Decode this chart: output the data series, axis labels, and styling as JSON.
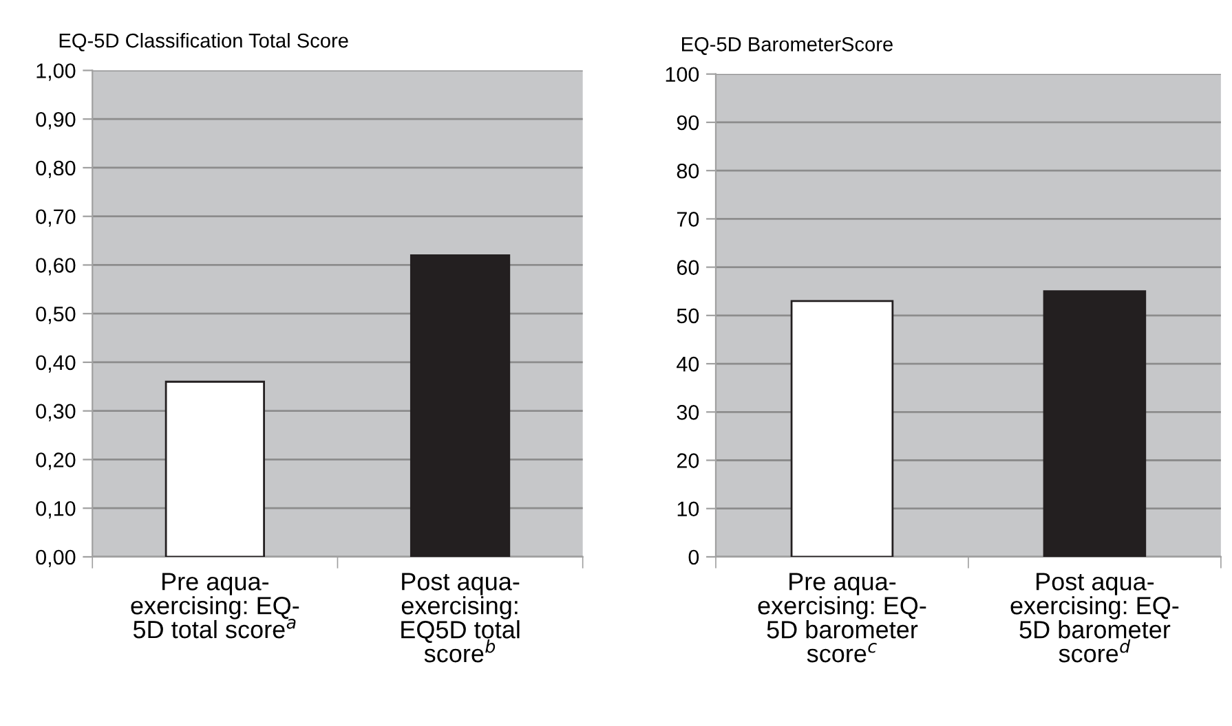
{
  "chart_data": [
    {
      "type": "bar",
      "title": "EQ-5D Classification Total Score",
      "categories": [
        "Pre aqua-\nexercising: EQ-\n5D total score$^{a}$",
        "Post aqua-\nexercising:\nEQ5D total\nscore$^{b}$"
      ],
      "values": [
        0.36,
        0.62
      ],
      "colors": [
        "#ffffff",
        "#231f20"
      ],
      "ylim": [
        0,
        1
      ],
      "yticks": [
        {
          "value": 0,
          "label": "0,00"
        },
        {
          "value": 0.1,
          "label": "0,10"
        },
        {
          "value": 0.2,
          "label": "0,20"
        },
        {
          "value": 0.3,
          "label": "0,30"
        },
        {
          "value": 0.4,
          "label": "0,40"
        },
        {
          "value": 0.5,
          "label": "0,50"
        },
        {
          "value": 0.6,
          "label": "0,60"
        },
        {
          "value": 0.7,
          "label": "0,70"
        },
        {
          "value": 0.8,
          "label": "0,80"
        },
        {
          "value": 0.9,
          "label": "0,90"
        },
        {
          "value": 1,
          "label": "1,00"
        }
      ],
      "grid": "y",
      "legend": false
    },
    {
      "type": "bar",
      "title": "EQ-5D BarometerScore",
      "categories": [
        "Pre aqua-\nexercising: EQ-\n5D barometer\nscore$^{c}$",
        "Post aqua-\nexercising: EQ-\n5D barometer\nscore$^{d}$"
      ],
      "values": [
        53,
        55
      ],
      "colors": [
        "#ffffff",
        "#231f20"
      ],
      "ylim": [
        0,
        100
      ],
      "yticks": [
        0,
        10,
        20,
        30,
        40,
        50,
        60,
        70,
        80,
        90,
        100
      ],
      "grid": "y",
      "legend": false
    }
  ]
}
